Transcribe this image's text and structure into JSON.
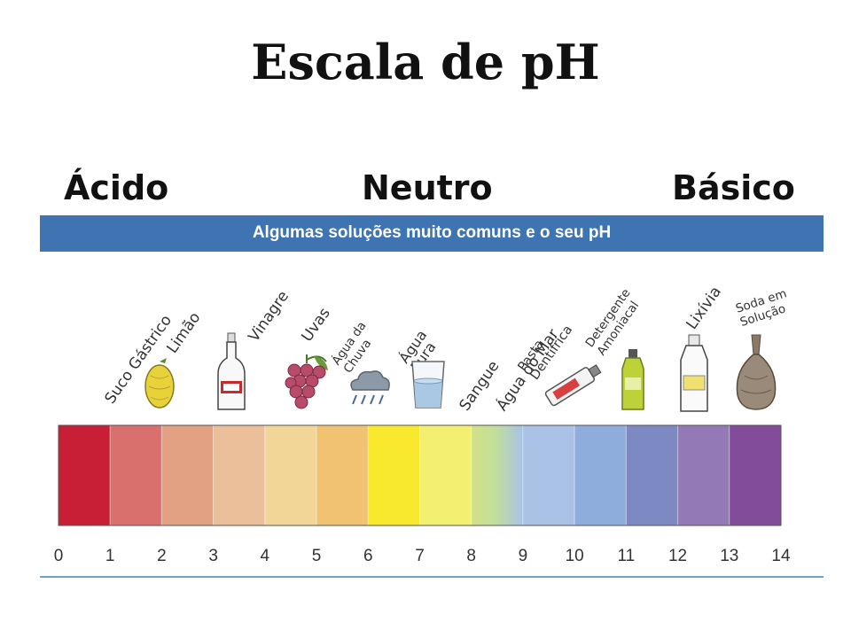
{
  "title": "Escala de pH",
  "categories": {
    "acid": "Ácido",
    "neutral": "Neutro",
    "basic": "Básico"
  },
  "banner": "Algumas soluções muito comuns e o seu pH",
  "solutions": [
    {
      "name": "Suco Gástrico",
      "icon": "none"
    },
    {
      "name": "Limão",
      "icon": "lemon-icon"
    },
    {
      "name": "Vinagre",
      "icon": "vinegar-bottle-icon"
    },
    {
      "name": "Uvas",
      "icon": "grapes-icon"
    },
    {
      "name": "Água da Chuva",
      "icon": "rain-cloud-icon"
    },
    {
      "name": "Água Pura",
      "icon": "water-glass-icon"
    },
    {
      "name": "Sangue",
      "icon": "none"
    },
    {
      "name": "Água do Mar",
      "icon": "none"
    },
    {
      "name": "Pasta Dentífrica",
      "icon": "toothpaste-icon"
    },
    {
      "name": "Detergente Amoniacal",
      "icon": "detergent-bottle-icon"
    },
    {
      "name": "Lixívia",
      "icon": "bleach-bottle-icon"
    },
    {
      "name": "Soda em Solução",
      "icon": "soda-sack-icon"
    }
  ],
  "ph_ticks": [
    "0",
    "1",
    "2",
    "3",
    "4",
    "5",
    "6",
    "7",
    "8",
    "9",
    "10",
    "11",
    "12",
    "13",
    "14"
  ],
  "colors": [
    "#c81f36",
    "#d9706d",
    "#e3a184",
    "#ebbf99",
    "#f2d698",
    "#f0c272",
    "#f9e92e",
    "#f3ef70",
    "#d2e186",
    "#a9c2e6",
    "#8eacdc",
    "#7d89c2",
    "#9379b6",
    "#834c9b"
  ],
  "banner_color": "#3d74b1"
}
